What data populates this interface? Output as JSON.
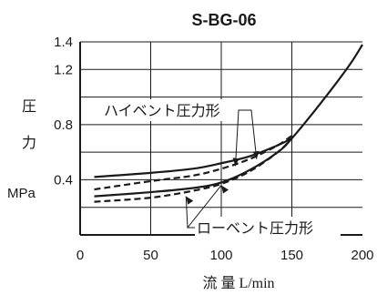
{
  "chart_data": {
    "type": "line",
    "title": "S-BG-06",
    "xlabel": "流 量 L/min",
    "ylabel_chars": [
      "圧",
      "力"
    ],
    "yunit": "MPa",
    "xlim": [
      0,
      200
    ],
    "ylim": [
      0,
      1.4
    ],
    "x_ticks": [
      0,
      50,
      100,
      150,
      200
    ],
    "x_tick_labels": [
      "0",
      "50",
      "100",
      "150",
      "200"
    ],
    "y_ticks": [
      0.4,
      0.8,
      1.2,
      1.4
    ],
    "y_tick_labels": [
      "0.4",
      "0.8",
      "1.2",
      "1.4"
    ],
    "y_gridlines": [
      0.2,
      0.4,
      0.6,
      0.8,
      1.0,
      1.2,
      1.4
    ],
    "x_gridlines": [
      50,
      100,
      150
    ],
    "grid": true,
    "annotations": [
      {
        "text": "ハイベント圧力形",
        "targets": [
          {
            "x": 110,
            "y": 0.5
          },
          {
            "x": 125,
            "y": 0.55
          }
        ]
      },
      {
        "text": "ローベント圧力形",
        "targets": [
          {
            "x": 100,
            "y": 0.36
          },
          {
            "x": 75,
            "y": 0.28
          }
        ]
      }
    ],
    "series": [
      {
        "style": "solid",
        "color": "#1a1a1a",
        "x": [
          10,
          50,
          80,
          100,
          120,
          140,
          150
        ],
        "y": [
          0.42,
          0.45,
          0.48,
          0.52,
          0.57,
          0.65,
          0.7
        ]
      },
      {
        "style": "dashed",
        "color": "#1a1a1a",
        "x": [
          10,
          50,
          80,
          100,
          120,
          140,
          150
        ],
        "y": [
          0.33,
          0.39,
          0.43,
          0.48,
          0.55,
          0.65,
          0.72
        ]
      },
      {
        "style": "solid",
        "color": "#1a1a1a",
        "x": [
          10,
          50,
          80,
          100,
          120,
          140,
          150,
          170,
          190,
          200
        ],
        "y": [
          0.28,
          0.31,
          0.34,
          0.38,
          0.47,
          0.6,
          0.7,
          0.95,
          1.22,
          1.38
        ]
      },
      {
        "style": "dashed",
        "color": "#1a1a1a",
        "x": [
          10,
          50,
          80,
          100,
          120,
          140,
          150
        ],
        "y": [
          0.24,
          0.27,
          0.32,
          0.37,
          0.46,
          0.6,
          0.7
        ]
      }
    ]
  }
}
